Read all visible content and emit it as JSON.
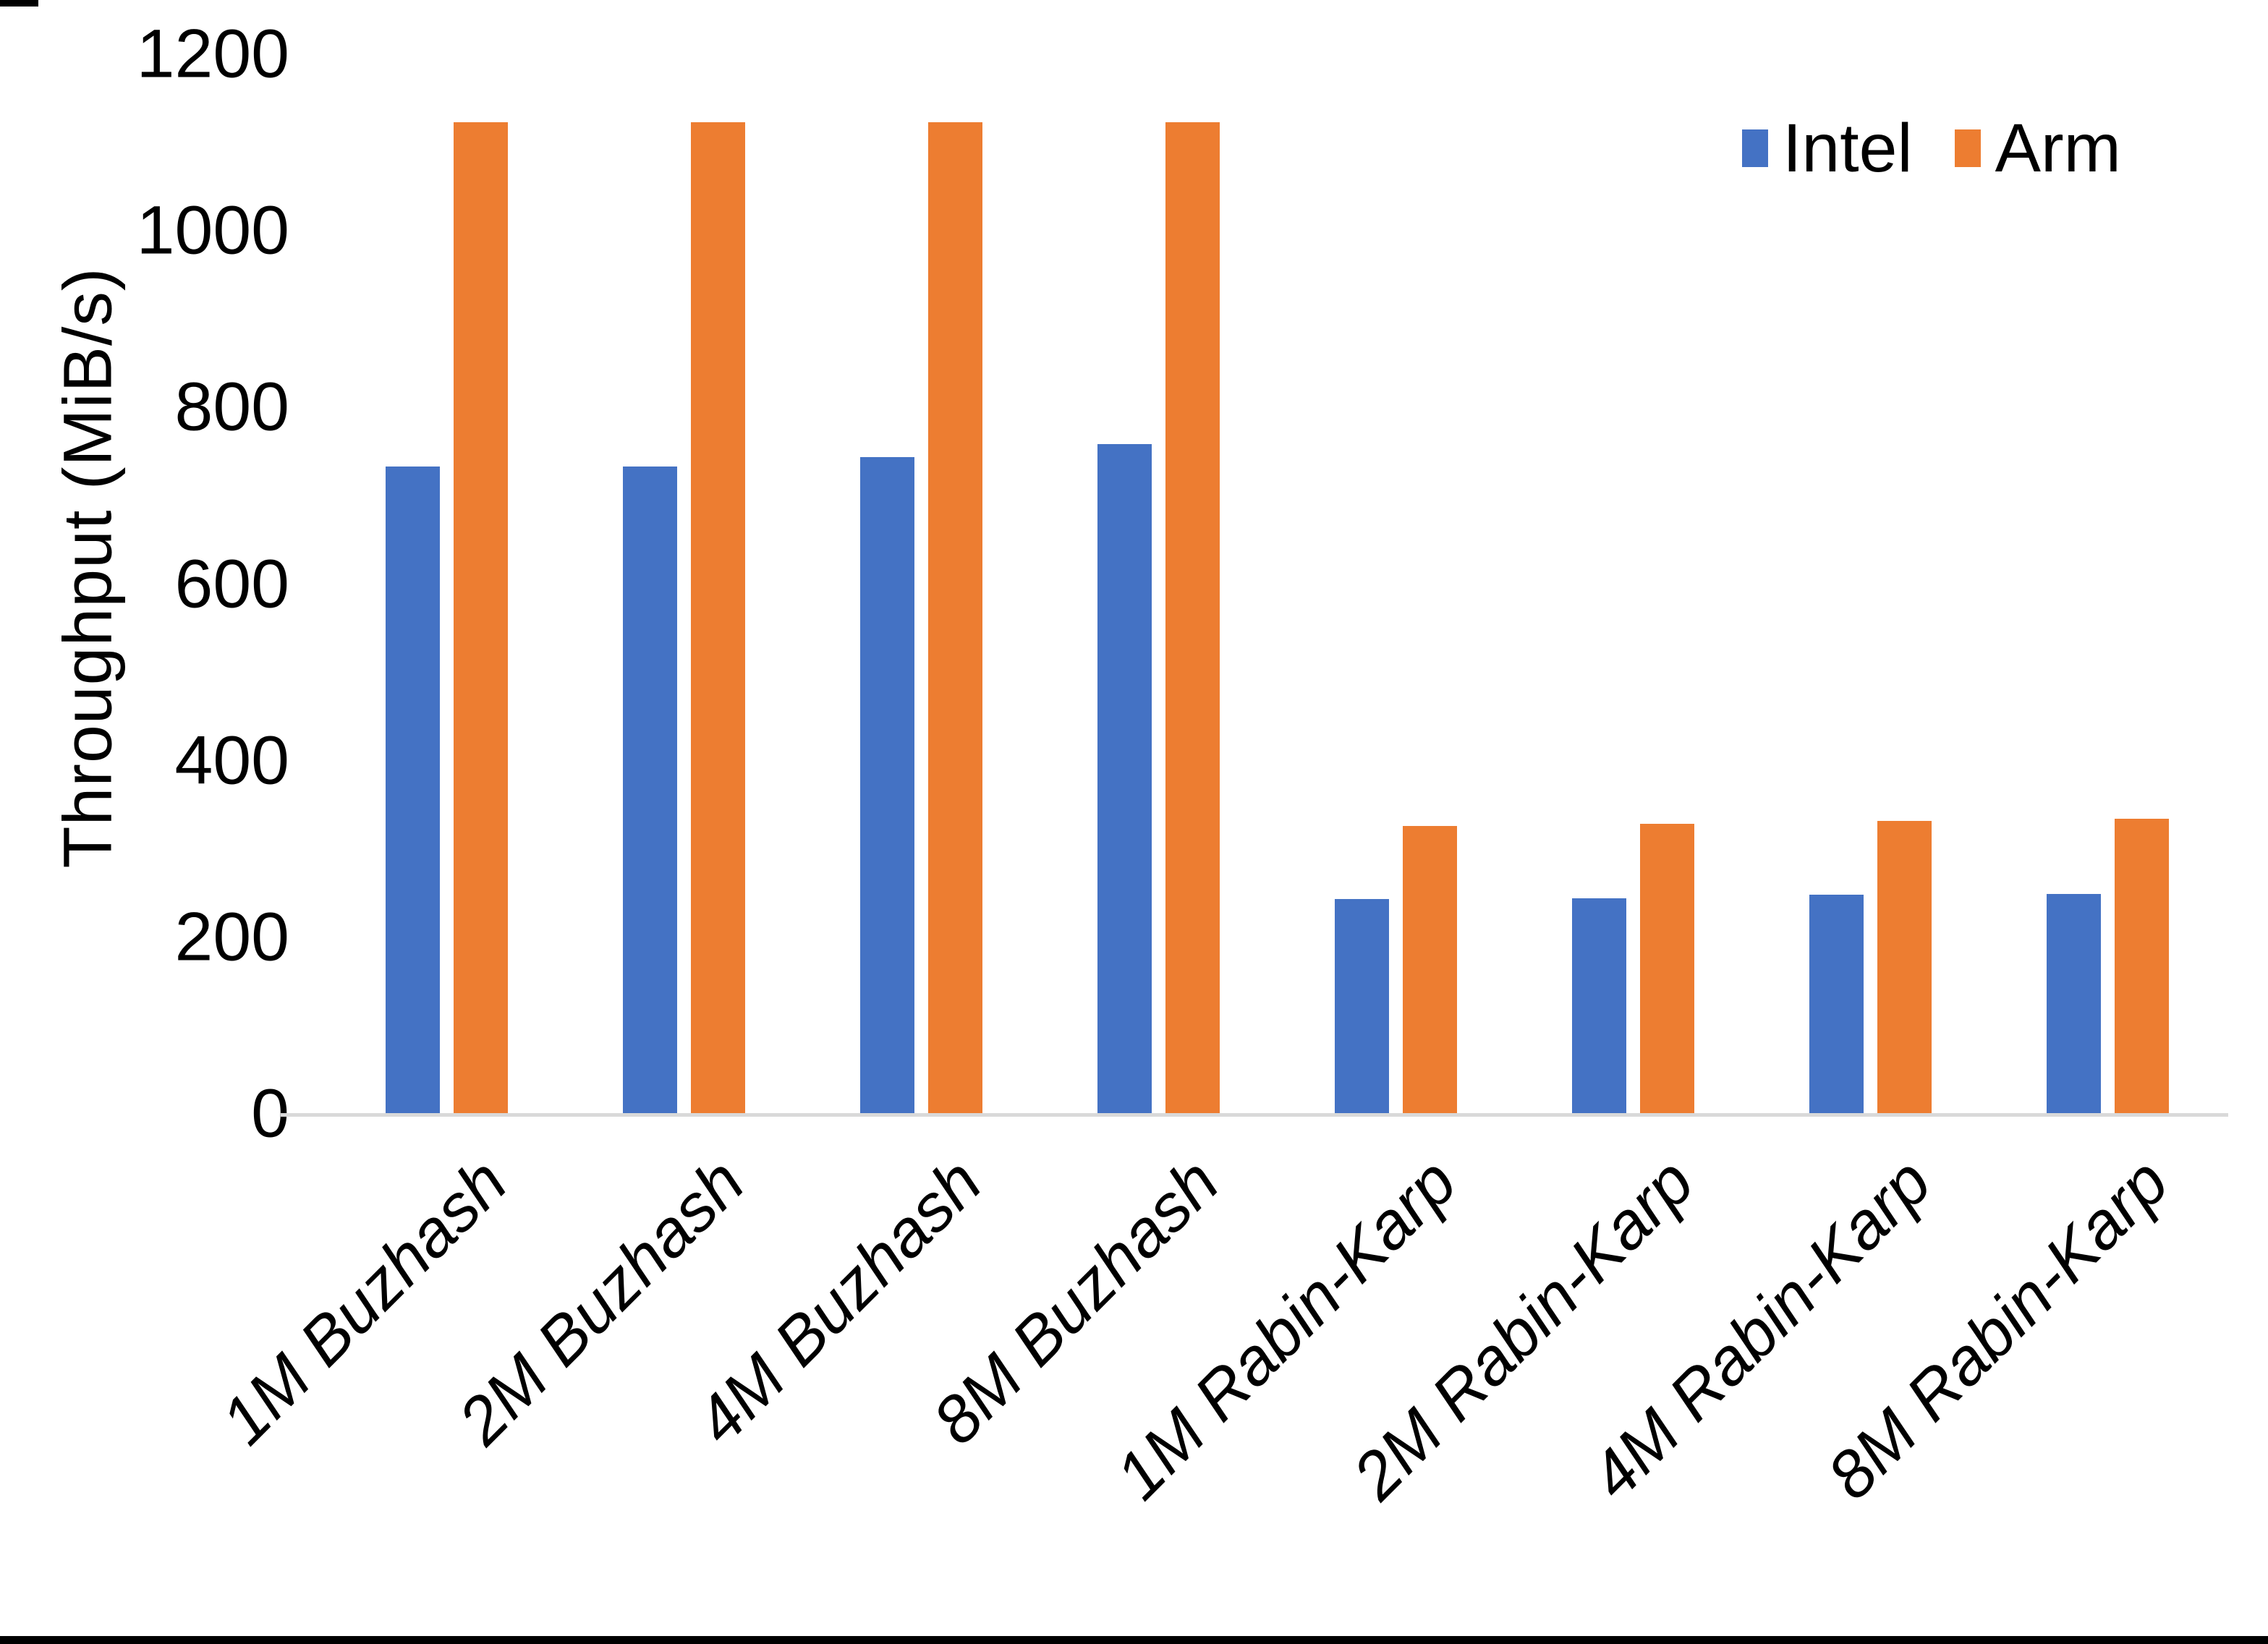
{
  "chart_data": {
    "type": "bar",
    "title": "",
    "xlabel": "",
    "ylabel": "Throughput (MiB/s)",
    "categories": [
      "1M Buzhash",
      "2M Buzhash",
      "4M Buzhash",
      "8M Buzhash",
      "1M Rabin-Karp",
      "2M Rabin-Karp",
      "4M Rabin-Karp",
      "8M Rabin-Karp"
    ],
    "series": [
      {
        "name": "Intel",
        "color": "#4472C4",
        "values": [
          735,
          735,
          745,
          760,
          245,
          246,
          250,
          251
        ]
      },
      {
        "name": "Arm",
        "color": "#ED7D31",
        "values": [
          1125,
          1125,
          1125,
          1125,
          328,
          330,
          333,
          336
        ]
      }
    ],
    "ylim": [
      0,
      1200
    ],
    "yticks": [
      0,
      200,
      400,
      600,
      800,
      1000,
      1200
    ],
    "grid": false,
    "legend_position": "top-right",
    "axis_line_color": "#D9D9D9"
  }
}
